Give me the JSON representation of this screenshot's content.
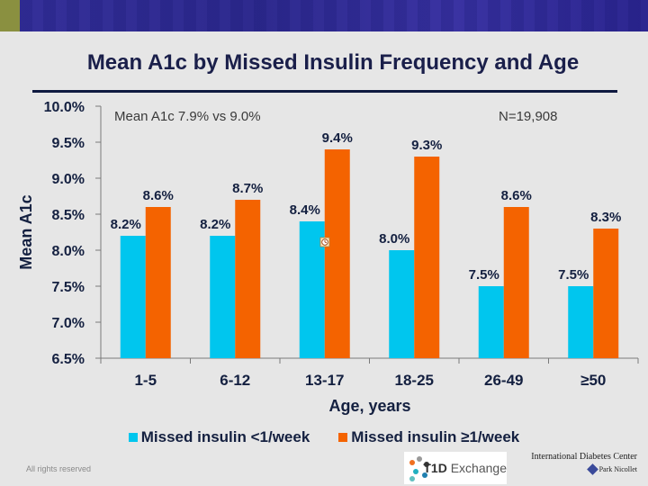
{
  "slide": {
    "title": "Mean A1c by Missed Insulin Frequency and Age",
    "footer_rights": "All rights reserved",
    "logos": {
      "t1d_bold": "T1D",
      "t1d_rest": " Exchange",
      "idc": "International Diabetes Center",
      "park_nicollet": "Park Nicollet"
    }
  },
  "colors": {
    "series_lt1": "#00c6ee",
    "series_ge1": "#f46300",
    "banner_stripe": "#8a9040",
    "title": "#1a1f4a"
  },
  "chart_data": {
    "type": "bar",
    "title": "Mean A1c by Missed Insulin Frequency and Age",
    "xlabel": "Age, years",
    "ylabel": "Mean A1c",
    "ylim": [
      6.5,
      10.0
    ],
    "yticks": [
      "6.5%",
      "7.0%",
      "7.5%",
      "8.0%",
      "8.5%",
      "9.0%",
      "9.5%",
      "10.0%"
    ],
    "ytick_values": [
      6.5,
      7.0,
      7.5,
      8.0,
      8.5,
      9.0,
      9.5,
      10.0
    ],
    "grid": false,
    "legend_position": "bottom",
    "categories": [
      "1-5",
      "6-12",
      "13-17",
      "18-25",
      "26-49",
      "≥50"
    ],
    "series": [
      {
        "name": "Missed insulin <1/week",
        "values": [
          8.2,
          8.2,
          8.4,
          8.0,
          7.5,
          7.5
        ],
        "labels": [
          "8.2%",
          "8.2%",
          "8.4%",
          "8.0%",
          "7.5%",
          "7.5%"
        ]
      },
      {
        "name": "Missed insulin ≥1/week",
        "values": [
          8.6,
          8.7,
          9.4,
          9.3,
          8.6,
          8.3
        ],
        "labels": [
          "8.6%",
          "8.7%",
          "9.4%",
          "9.3%",
          "8.6%",
          "8.3%"
        ]
      }
    ],
    "annotations": {
      "summary": "Mean A1c 7.9% vs 9.0%",
      "sample_size": "N=19,908"
    }
  }
}
